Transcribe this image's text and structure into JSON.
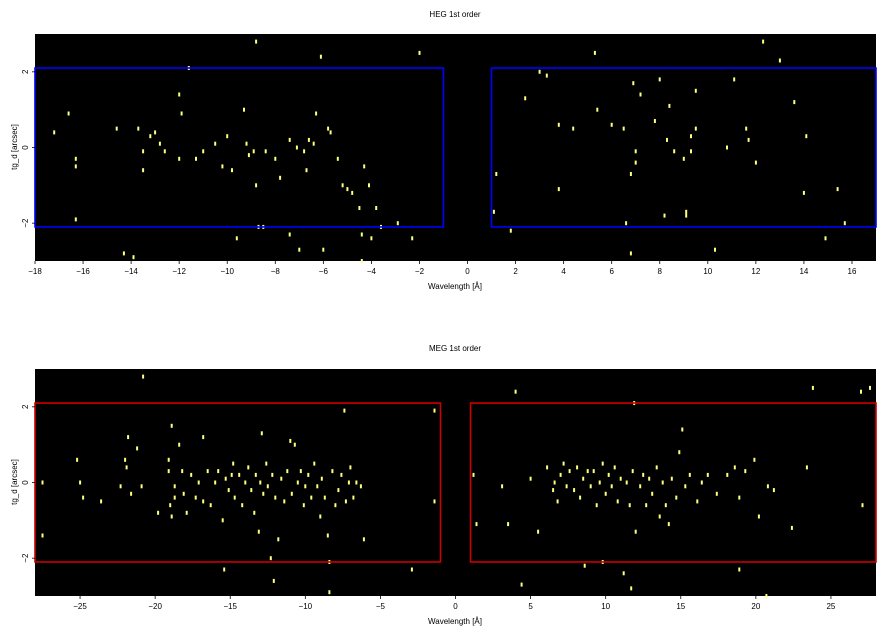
{
  "chart_data": [
    {
      "type": "scatter",
      "title": "HEG 1st order",
      "xlabel": "Wavelength [Å]",
      "ylabel": "tg_d [arcsec]",
      "xlim": [
        -18,
        17
      ],
      "ylim": [
        -3,
        3
      ],
      "xticks": [
        -18,
        -16,
        -14,
        -12,
        -10,
        -8,
        -6,
        -4,
        -2,
        0,
        2,
        4,
        6,
        8,
        10,
        12,
        14,
        16
      ],
      "yticks": [
        -2,
        0,
        2
      ],
      "background": "#000000",
      "point_color": "#ffff80",
      "region_color": "#0000ff",
      "regions": [
        {
          "x": [
            -18,
            -1
          ],
          "y": [
            -2.1,
            2.1
          ]
        },
        {
          "x": [
            1,
            17
          ],
          "y": [
            -2.1,
            2.1
          ]
        }
      ],
      "points": [
        [
          -17.2,
          0.4
        ],
        [
          -16.6,
          0.9
        ],
        [
          -16.3,
          -0.3
        ],
        [
          -16.3,
          -0.5
        ],
        [
          -16.3,
          -1.9
        ],
        [
          -14.3,
          -2.8
        ],
        [
          -13.9,
          -2.9
        ],
        [
          -13.7,
          0.5
        ],
        [
          -13.5,
          -0.1
        ],
        [
          -13.5,
          -0.6
        ],
        [
          -13.2,
          0.3
        ],
        [
          -13.0,
          0.4
        ],
        [
          -12.8,
          0.1
        ],
        [
          -12.6,
          -0.1
        ],
        [
          -12.0,
          1.4
        ],
        [
          -12.0,
          -0.3
        ],
        [
          -11.9,
          0.9
        ],
        [
          -11.6,
          2.1
        ],
        [
          -11.3,
          -0.3
        ],
        [
          -11.0,
          -0.1
        ],
        [
          -10.5,
          0.1
        ],
        [
          -10.2,
          -0.5
        ],
        [
          -10.0,
          0.3
        ],
        [
          -9.8,
          -0.6
        ],
        [
          -9.6,
          -2.4
        ],
        [
          -9.3,
          1.0
        ],
        [
          -9.2,
          0.1
        ],
        [
          -9.1,
          -0.2
        ],
        [
          -8.9,
          -0.1
        ],
        [
          -8.8,
          -1.0
        ],
        [
          -8.7,
          -2.1
        ],
        [
          -8.5,
          -2.1
        ],
        [
          -8.4,
          -0.1
        ],
        [
          -8.0,
          -0.3
        ],
        [
          -7.8,
          -0.8
        ],
        [
          -7.4,
          0.2
        ],
        [
          -7.4,
          -2.3
        ],
        [
          -7.1,
          0.0
        ],
        [
          -6.8,
          -0.1
        ],
        [
          -6.7,
          -0.6
        ],
        [
          -6.6,
          0.2
        ],
        [
          -6.4,
          0.1
        ],
        [
          -6.3,
          0.9
        ],
        [
          -6.1,
          2.4
        ],
        [
          -6.0,
          -2.7
        ],
        [
          -5.8,
          0.5
        ],
        [
          -5.7,
          0.4
        ],
        [
          -5.4,
          -0.3
        ],
        [
          -5.2,
          -1.0
        ],
        [
          -5.0,
          -1.1
        ],
        [
          -4.8,
          -1.2
        ],
        [
          -4.5,
          -1.6
        ],
        [
          -4.4,
          -2.3
        ],
        [
          -4.3,
          -0.5
        ],
        [
          -4.1,
          -1.0
        ],
        [
          -4.0,
          -2.4
        ],
        [
          -3.8,
          -1.6
        ],
        [
          -3.6,
          -2.1
        ],
        [
          -2.9,
          -2.0
        ],
        [
          -2.3,
          -2.4
        ],
        [
          -2.0,
          2.5
        ],
        [
          -8.8,
          2.8
        ],
        [
          -7.0,
          -2.7
        ],
        [
          -4.4,
          -3.0
        ],
        [
          -14.6,
          0.5
        ],
        [
          1.1,
          -1.7
        ],
        [
          1.2,
          -0.7
        ],
        [
          1.8,
          -2.2
        ],
        [
          2.4,
          1.3
        ],
        [
          3.0,
          2.0
        ],
        [
          3.3,
          1.9
        ],
        [
          3.8,
          0.6
        ],
        [
          3.8,
          -1.1
        ],
        [
          4.4,
          0.5
        ],
        [
          5.3,
          2.5
        ],
        [
          5.4,
          1.0
        ],
        [
          6.0,
          0.6
        ],
        [
          6.5,
          0.5
        ],
        [
          6.6,
          -2.0
        ],
        [
          6.8,
          -2.8
        ],
        [
          6.8,
          -0.7
        ],
        [
          6.9,
          1.7
        ],
        [
          7.0,
          -0.4
        ],
        [
          7.0,
          -0.1
        ],
        [
          7.2,
          1.4
        ],
        [
          7.8,
          0.7
        ],
        [
          8.0,
          1.8
        ],
        [
          8.2,
          -1.8
        ],
        [
          8.3,
          0.2
        ],
        [
          8.4,
          1.1
        ],
        [
          8.6,
          -0.1
        ],
        [
          9.0,
          -0.3
        ],
        [
          9.1,
          -1.7
        ],
        [
          9.1,
          -1.8
        ],
        [
          9.3,
          0.3
        ],
        [
          9.3,
          -0.1
        ],
        [
          9.5,
          0.5
        ],
        [
          9.5,
          1.5
        ],
        [
          10.3,
          -2.7
        ],
        [
          11.1,
          1.8
        ],
        [
          11.6,
          0.5
        ],
        [
          11.7,
          0.2
        ],
        [
          12.0,
          -0.4
        ],
        [
          12.3,
          2.8
        ],
        [
          13.0,
          2.3
        ],
        [
          13.6,
          1.2
        ],
        [
          14.0,
          -1.2
        ],
        [
          14.1,
          0.3
        ],
        [
          14.9,
          -2.4
        ],
        [
          15.4,
          -1.1
        ],
        [
          15.7,
          -2.0
        ],
        [
          10.8,
          0.0
        ]
      ]
    },
    {
      "type": "scatter",
      "title": "MEG 1st order",
      "xlabel": "Wavelength [Å]",
      "ylabel": "tg_d [arcsec]",
      "xlim": [
        -28,
        28
      ],
      "ylim": [
        -3,
        3
      ],
      "xticks": [
        -25,
        -20,
        -15,
        -10,
        -5,
        0,
        5,
        10,
        15,
        20,
        25
      ],
      "yticks": [
        -2,
        0,
        2
      ],
      "background": "#000000",
      "point_color": "#ffff80",
      "region_color": "#cc0000",
      "regions": [
        {
          "x": [
            -28,
            -1
          ],
          "y": [
            -2.1,
            2.1
          ]
        },
        {
          "x": [
            1,
            28
          ],
          "y": [
            -2.1,
            2.1
          ]
        }
      ],
      "points": [
        [
          -27.5,
          -1.4
        ],
        [
          -25.2,
          0.6
        ],
        [
          -25.0,
          0.0
        ],
        [
          -24.8,
          -0.4
        ],
        [
          -23.6,
          -0.5
        ],
        [
          -22.3,
          -0.1
        ],
        [
          -22.0,
          0.6
        ],
        [
          -21.9,
          0.4
        ],
        [
          -21.8,
          1.2
        ],
        [
          -21.6,
          -0.3
        ],
        [
          -21.2,
          0.9
        ],
        [
          -20.9,
          -0.1
        ],
        [
          -19.8,
          -0.8
        ],
        [
          -19.1,
          0.6
        ],
        [
          -19.1,
          0.3
        ],
        [
          -19.0,
          -0.6
        ],
        [
          -18.9,
          1.5
        ],
        [
          -18.9,
          -0.9
        ],
        [
          -18.7,
          -0.1
        ],
        [
          -18.7,
          -0.4
        ],
        [
          -18.4,
          1.0
        ],
        [
          -18.2,
          0.3
        ],
        [
          -18.1,
          -0.3
        ],
        [
          -17.9,
          -0.8
        ],
        [
          -17.6,
          0.2
        ],
        [
          -17.3,
          -0.4
        ],
        [
          -17.1,
          0.0
        ],
        [
          -16.8,
          1.2
        ],
        [
          -16.8,
          -0.5
        ],
        [
          -16.5,
          0.3
        ],
        [
          -16.3,
          -0.6
        ],
        [
          -16.0,
          0.0
        ],
        [
          -15.8,
          0.3
        ],
        [
          -15.5,
          -1.0
        ],
        [
          -15.4,
          -2.3
        ],
        [
          -15.3,
          0.1
        ],
        [
          -15.1,
          -0.2
        ],
        [
          -14.9,
          0.2
        ],
        [
          -14.8,
          0.5
        ],
        [
          -14.7,
          -0.4
        ],
        [
          -14.4,
          0.2
        ],
        [
          -14.2,
          -0.6
        ],
        [
          -14.0,
          0.0
        ],
        [
          -13.8,
          0.4
        ],
        [
          -13.6,
          -0.2
        ],
        [
          -13.4,
          -0.8
        ],
        [
          -13.3,
          0.2
        ],
        [
          -13.1,
          -1.3
        ],
        [
          -13.0,
          0.0
        ],
        [
          -12.9,
          1.3
        ],
        [
          -12.8,
          -0.3
        ],
        [
          -12.6,
          0.5
        ],
        [
          -12.5,
          -0.1
        ],
        [
          -12.3,
          -2.0
        ],
        [
          -12.2,
          0.2
        ],
        [
          -12.1,
          -2.6
        ],
        [
          -12.0,
          -0.4
        ],
        [
          -11.8,
          -1.5
        ],
        [
          -11.6,
          0.1
        ],
        [
          -11.4,
          -0.5
        ],
        [
          -11.2,
          0.3
        ],
        [
          -11.0,
          1.1
        ],
        [
          -10.9,
          -0.3
        ],
        [
          -10.7,
          1.0
        ],
        [
          -10.5,
          0.0
        ],
        [
          -10.3,
          0.3
        ],
        [
          -10.1,
          -0.6
        ],
        [
          -10.0,
          -0.1
        ],
        [
          -9.8,
          0.2
        ],
        [
          -9.6,
          -0.4
        ],
        [
          -9.4,
          0.5
        ],
        [
          -9.2,
          -0.1
        ],
        [
          -9.0,
          -0.9
        ],
        [
          -8.9,
          0.1
        ],
        [
          -8.7,
          -0.4
        ],
        [
          -8.5,
          -1.4
        ],
        [
          -8.4,
          -2.1
        ],
        [
          -8.2,
          0.3
        ],
        [
          -8.0,
          -0.6
        ],
        [
          -7.8,
          -0.2
        ],
        [
          -7.6,
          0.2
        ],
        [
          -7.4,
          1.9
        ],
        [
          -7.3,
          -0.5
        ],
        [
          -7.1,
          0.0
        ],
        [
          -7.0,
          0.4
        ],
        [
          -6.8,
          -0.4
        ],
        [
          -6.6,
          0.0
        ],
        [
          -6.3,
          -0.1
        ],
        [
          -6.1,
          -1.5
        ],
        [
          -2.9,
          -2.3
        ],
        [
          -1.4,
          1.9
        ],
        [
          -1.4,
          -0.5
        ],
        [
          -8.4,
          -2.9
        ],
        [
          -20.8,
          2.8
        ],
        [
          -27.5,
          0.0
        ],
        [
          1.2,
          0.2
        ],
        [
          1.4,
          -1.1
        ],
        [
          3.1,
          -0.1
        ],
        [
          3.5,
          -1.1
        ],
        [
          4.0,
          2.4
        ],
        [
          4.4,
          -2.7
        ],
        [
          5.0,
          0.1
        ],
        [
          5.5,
          -1.3
        ],
        [
          6.1,
          0.4
        ],
        [
          6.5,
          -0.2
        ],
        [
          6.6,
          0.0
        ],
        [
          6.8,
          -0.5
        ],
        [
          7.0,
          0.2
        ],
        [
          7.2,
          0.5
        ],
        [
          7.4,
          -0.1
        ],
        [
          7.6,
          0.3
        ],
        [
          7.9,
          -0.2
        ],
        [
          8.1,
          0.4
        ],
        [
          8.3,
          -0.4
        ],
        [
          8.5,
          0.1
        ],
        [
          8.6,
          -2.2
        ],
        [
          8.8,
          0.3
        ],
        [
          9.0,
          -0.1
        ],
        [
          9.2,
          0.3
        ],
        [
          9.4,
          -0.6
        ],
        [
          9.6,
          0.0
        ],
        [
          9.8,
          -2.1
        ],
        [
          9.8,
          0.5
        ],
        [
          10.0,
          -0.3
        ],
        [
          10.2,
          0.2
        ],
        [
          10.4,
          -0.1
        ],
        [
          10.6,
          0.4
        ],
        [
          10.8,
          -0.5
        ],
        [
          11.0,
          0.1
        ],
        [
          11.2,
          -2.4
        ],
        [
          11.4,
          0.0
        ],
        [
          11.6,
          -0.6
        ],
        [
          11.8,
          0.3
        ],
        [
          11.9,
          2.1
        ],
        [
          12.0,
          -1.3
        ],
        [
          12.3,
          -0.1
        ],
        [
          12.5,
          0.2
        ],
        [
          12.7,
          -0.6
        ],
        [
          12.9,
          0.1
        ],
        [
          13.1,
          -0.3
        ],
        [
          13.4,
          0.4
        ],
        [
          13.6,
          -0.9
        ],
        [
          13.8,
          0.0
        ],
        [
          14.0,
          -0.6
        ],
        [
          14.2,
          -1.1
        ],
        [
          14.4,
          0.1
        ],
        [
          14.7,
          -0.4
        ],
        [
          14.9,
          0.8
        ],
        [
          15.1,
          1.4
        ],
        [
          15.3,
          -0.1
        ],
        [
          15.6,
          0.2
        ],
        [
          16.1,
          -0.5
        ],
        [
          16.4,
          0.0
        ],
        [
          16.8,
          0.2
        ],
        [
          17.4,
          -0.3
        ],
        [
          18.1,
          0.2
        ],
        [
          18.6,
          0.4
        ],
        [
          18.9,
          -0.4
        ],
        [
          18.9,
          -2.3
        ],
        [
          19.3,
          0.3
        ],
        [
          19.9,
          0.6
        ],
        [
          20.2,
          -0.9
        ],
        [
          20.8,
          -0.1
        ],
        [
          21.2,
          -0.2
        ],
        [
          22.4,
          -1.2
        ],
        [
          23.4,
          0.4
        ],
        [
          23.8,
          2.5
        ],
        [
          27.0,
          2.4
        ],
        [
          27.6,
          2.5
        ],
        [
          27.1,
          -0.6
        ],
        [
          11.7,
          -2.8
        ],
        [
          20.7,
          -3.0
        ]
      ]
    }
  ]
}
